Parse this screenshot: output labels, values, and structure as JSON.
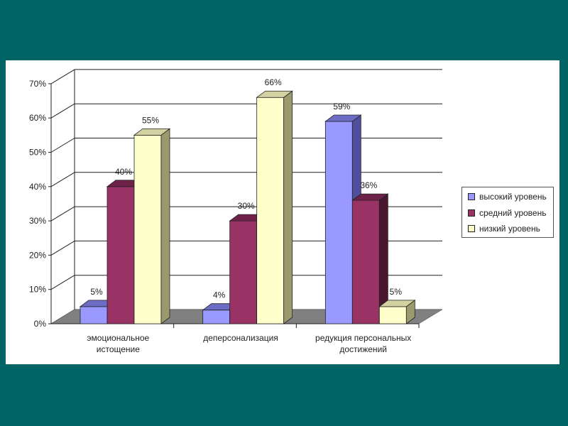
{
  "chart_data": {
    "type": "bar",
    "categories": [
      [
        "эмоциональное",
        "истощение"
      ],
      [
        "деперсонализация"
      ],
      [
        "редукция персональных",
        "достижений"
      ]
    ],
    "series": [
      {
        "name": "высокий уровень",
        "values": [
          5,
          4,
          59
        ],
        "labels": [
          "5%",
          "4%",
          "59%"
        ]
      },
      {
        "name": "средний уровень",
        "values": [
          40,
          30,
          36
        ],
        "labels": [
          "40%",
          "30%",
          "36%"
        ]
      },
      {
        "name": "низкий уровень",
        "values": [
          55,
          66,
          5
        ],
        "labels": [
          "55%",
          "66%",
          "5%"
        ]
      }
    ],
    "y_ticks": [
      "0%",
      "10%",
      "20%",
      "30%",
      "40%",
      "50%",
      "60%",
      "70%"
    ],
    "ylim": [
      0,
      70
    ],
    "grid": true,
    "three_d": true,
    "legend_position": "right",
    "colors": {
      "series": [
        {
          "front": "#9999ff",
          "side": "#4f4f9e",
          "top": "#6c6cc4"
        },
        {
          "front": "#993366",
          "side": "#4b1632",
          "top": "#6e2249"
        },
        {
          "front": "#ffffcc",
          "side": "#9a9a6e",
          "top": "#d1d1a2"
        }
      ],
      "floor": "#808080",
      "background": "#006464"
    }
  }
}
